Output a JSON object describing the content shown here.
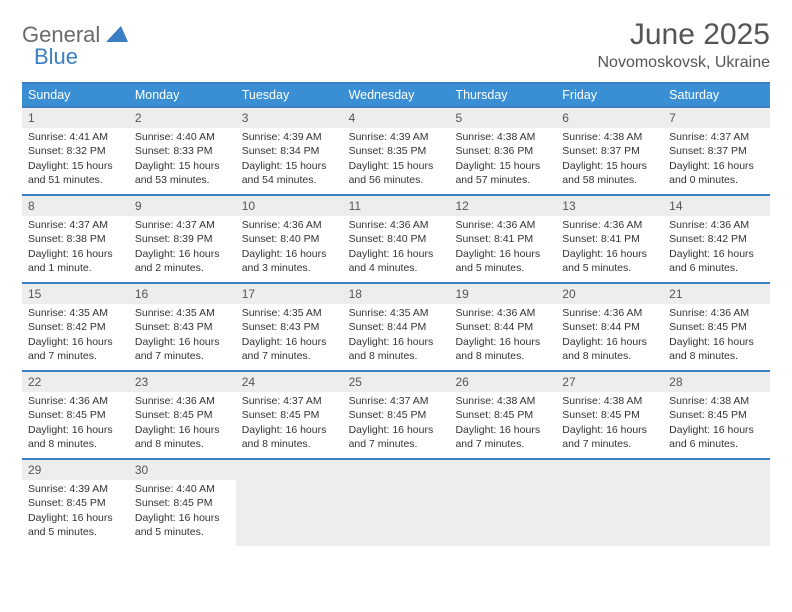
{
  "logo": {
    "general": "General",
    "blue": "Blue"
  },
  "title": "June 2025",
  "location": "Novomoskovsk, Ukraine",
  "colors": {
    "header_bg": "#3a8fd4",
    "border": "#3a7fc4",
    "daynum_bg": "#ededed",
    "text": "#333333",
    "title_text": "#555555"
  },
  "weekdays": [
    "Sunday",
    "Monday",
    "Tuesday",
    "Wednesday",
    "Thursday",
    "Friday",
    "Saturday"
  ],
  "weeks": [
    [
      {
        "n": "1",
        "sr": "Sunrise: 4:41 AM",
        "ss": "Sunset: 8:32 PM",
        "dl": "Daylight: 15 hours and 51 minutes."
      },
      {
        "n": "2",
        "sr": "Sunrise: 4:40 AM",
        "ss": "Sunset: 8:33 PM",
        "dl": "Daylight: 15 hours and 53 minutes."
      },
      {
        "n": "3",
        "sr": "Sunrise: 4:39 AM",
        "ss": "Sunset: 8:34 PM",
        "dl": "Daylight: 15 hours and 54 minutes."
      },
      {
        "n": "4",
        "sr": "Sunrise: 4:39 AM",
        "ss": "Sunset: 8:35 PM",
        "dl": "Daylight: 15 hours and 56 minutes."
      },
      {
        "n": "5",
        "sr": "Sunrise: 4:38 AM",
        "ss": "Sunset: 8:36 PM",
        "dl": "Daylight: 15 hours and 57 minutes."
      },
      {
        "n": "6",
        "sr": "Sunrise: 4:38 AM",
        "ss": "Sunset: 8:37 PM",
        "dl": "Daylight: 15 hours and 58 minutes."
      },
      {
        "n": "7",
        "sr": "Sunrise: 4:37 AM",
        "ss": "Sunset: 8:37 PM",
        "dl": "Daylight: 16 hours and 0 minutes."
      }
    ],
    [
      {
        "n": "8",
        "sr": "Sunrise: 4:37 AM",
        "ss": "Sunset: 8:38 PM",
        "dl": "Daylight: 16 hours and 1 minute."
      },
      {
        "n": "9",
        "sr": "Sunrise: 4:37 AM",
        "ss": "Sunset: 8:39 PM",
        "dl": "Daylight: 16 hours and 2 minutes."
      },
      {
        "n": "10",
        "sr": "Sunrise: 4:36 AM",
        "ss": "Sunset: 8:40 PM",
        "dl": "Daylight: 16 hours and 3 minutes."
      },
      {
        "n": "11",
        "sr": "Sunrise: 4:36 AM",
        "ss": "Sunset: 8:40 PM",
        "dl": "Daylight: 16 hours and 4 minutes."
      },
      {
        "n": "12",
        "sr": "Sunrise: 4:36 AM",
        "ss": "Sunset: 8:41 PM",
        "dl": "Daylight: 16 hours and 5 minutes."
      },
      {
        "n": "13",
        "sr": "Sunrise: 4:36 AM",
        "ss": "Sunset: 8:41 PM",
        "dl": "Daylight: 16 hours and 5 minutes."
      },
      {
        "n": "14",
        "sr": "Sunrise: 4:36 AM",
        "ss": "Sunset: 8:42 PM",
        "dl": "Daylight: 16 hours and 6 minutes."
      }
    ],
    [
      {
        "n": "15",
        "sr": "Sunrise: 4:35 AM",
        "ss": "Sunset: 8:42 PM",
        "dl": "Daylight: 16 hours and 7 minutes."
      },
      {
        "n": "16",
        "sr": "Sunrise: 4:35 AM",
        "ss": "Sunset: 8:43 PM",
        "dl": "Daylight: 16 hours and 7 minutes."
      },
      {
        "n": "17",
        "sr": "Sunrise: 4:35 AM",
        "ss": "Sunset: 8:43 PM",
        "dl": "Daylight: 16 hours and 7 minutes."
      },
      {
        "n": "18",
        "sr": "Sunrise: 4:35 AM",
        "ss": "Sunset: 8:44 PM",
        "dl": "Daylight: 16 hours and 8 minutes."
      },
      {
        "n": "19",
        "sr": "Sunrise: 4:36 AM",
        "ss": "Sunset: 8:44 PM",
        "dl": "Daylight: 16 hours and 8 minutes."
      },
      {
        "n": "20",
        "sr": "Sunrise: 4:36 AM",
        "ss": "Sunset: 8:44 PM",
        "dl": "Daylight: 16 hours and 8 minutes."
      },
      {
        "n": "21",
        "sr": "Sunrise: 4:36 AM",
        "ss": "Sunset: 8:45 PM",
        "dl": "Daylight: 16 hours and 8 minutes."
      }
    ],
    [
      {
        "n": "22",
        "sr": "Sunrise: 4:36 AM",
        "ss": "Sunset: 8:45 PM",
        "dl": "Daylight: 16 hours and 8 minutes."
      },
      {
        "n": "23",
        "sr": "Sunrise: 4:36 AM",
        "ss": "Sunset: 8:45 PM",
        "dl": "Daylight: 16 hours and 8 minutes."
      },
      {
        "n": "24",
        "sr": "Sunrise: 4:37 AM",
        "ss": "Sunset: 8:45 PM",
        "dl": "Daylight: 16 hours and 8 minutes."
      },
      {
        "n": "25",
        "sr": "Sunrise: 4:37 AM",
        "ss": "Sunset: 8:45 PM",
        "dl": "Daylight: 16 hours and 7 minutes."
      },
      {
        "n": "26",
        "sr": "Sunrise: 4:38 AM",
        "ss": "Sunset: 8:45 PM",
        "dl": "Daylight: 16 hours and 7 minutes."
      },
      {
        "n": "27",
        "sr": "Sunrise: 4:38 AM",
        "ss": "Sunset: 8:45 PM",
        "dl": "Daylight: 16 hours and 7 minutes."
      },
      {
        "n": "28",
        "sr": "Sunrise: 4:38 AM",
        "ss": "Sunset: 8:45 PM",
        "dl": "Daylight: 16 hours and 6 minutes."
      }
    ],
    [
      {
        "n": "29",
        "sr": "Sunrise: 4:39 AM",
        "ss": "Sunset: 8:45 PM",
        "dl": "Daylight: 16 hours and 5 minutes."
      },
      {
        "n": "30",
        "sr": "Sunrise: 4:40 AM",
        "ss": "Sunset: 8:45 PM",
        "dl": "Daylight: 16 hours and 5 minutes."
      },
      null,
      null,
      null,
      null,
      null
    ]
  ]
}
